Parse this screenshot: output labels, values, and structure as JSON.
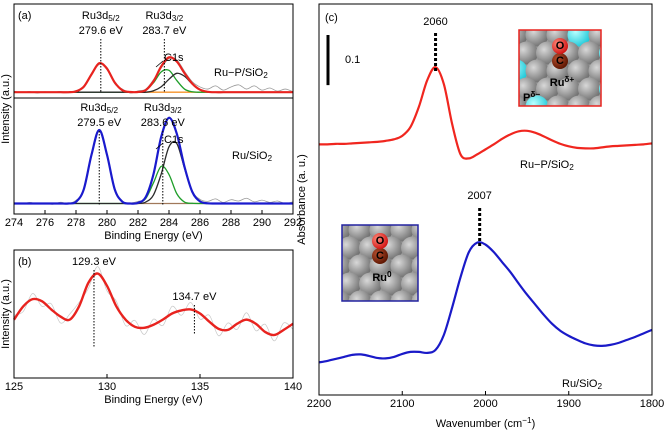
{
  "chart_data": [
    {
      "type": "line",
      "panel_label": "(a)",
      "xlabel": "Binding Energy (eV)",
      "ylabel": "Intensity (a.u.)",
      "xlim": [
        274,
        292
      ],
      "xticks": [
        274,
        276,
        278,
        280,
        282,
        284,
        286,
        288,
        290,
        292
      ],
      "ylim": [
        0,
        10
      ],
      "x": [
        274,
        274.5,
        275,
        275.5,
        276,
        276.5,
        277,
        277.5,
        278,
        278.5,
        279,
        279.5,
        280,
        280.5,
        281,
        281.5,
        282,
        282.5,
        283,
        283.5,
        284,
        284.5,
        285,
        285.5,
        286,
        286.5,
        287,
        287.5,
        288,
        288.5,
        289,
        289.5,
        290,
        290.5,
        291,
        291.5,
        292
      ],
      "series": [
        {
          "color": "#9a9a9a",
          "values": [
            5.85,
            5.78,
            5.83,
            5.76,
            5.82,
            5.79,
            5.84,
            5.77,
            5.88,
            6.02,
            6.7,
            7.12,
            6.98,
            6.2,
            5.95,
            5.76,
            5.86,
            5.95,
            6.4,
            6.95,
            7.4,
            7.35,
            6.8,
            6.3,
            6.05,
            5.95,
            6.1,
            5.9,
            6.05,
            6.15,
            5.95,
            6.1,
            5.9,
            6.0,
            5.85,
            5.95,
            5.82
          ]
        },
        {
          "color": "#f5922a",
          "values": [
            5.8,
            5.8,
            5.8,
            5.8,
            5.8,
            5.8,
            5.8,
            5.8,
            5.84,
            6.06,
            6.65,
            7.18,
            6.92,
            6.26,
            5.89,
            5.81,
            5.8,
            5.8,
            5.8,
            5.8,
            5.8,
            5.8,
            5.8,
            5.8,
            5.8,
            5.8,
            5.8,
            5.8,
            5.8,
            5.8,
            5.8,
            5.8,
            5.8,
            5.8,
            5.8,
            5.8,
            5.8
          ]
        },
        {
          "color": "#1f9e2a",
          "values": [
            5.8,
            5.8,
            5.8,
            5.8,
            5.8,
            5.8,
            5.8,
            5.8,
            5.8,
            5.8,
            5.8,
            5.8,
            5.8,
            5.8,
            5.8,
            5.8,
            5.81,
            5.9,
            6.25,
            6.77,
            6.84,
            6.36,
            5.95,
            5.82,
            5.8,
            5.8,
            5.8,
            5.8,
            5.8,
            5.8,
            5.8,
            5.8,
            5.8,
            5.8,
            5.8,
            5.8,
            5.8
          ]
        },
        {
          "color": "#2b2b2b",
          "values": [
            5.8,
            5.8,
            5.8,
            5.8,
            5.8,
            5.8,
            5.8,
            5.8,
            5.8,
            5.8,
            5.8,
            5.8,
            5.8,
            5.8,
            5.8,
            5.8,
            5.8,
            5.8,
            5.87,
            6.06,
            6.42,
            6.7,
            6.56,
            6.19,
            5.92,
            5.82,
            5.8,
            5.8,
            5.8,
            5.8,
            5.8,
            5.8,
            5.8,
            5.8,
            5.8,
            5.8,
            5.8
          ]
        },
        {
          "color": "#e8231f",
          "values": [
            5.8,
            5.8,
            5.8,
            5.8,
            5.8,
            5.8,
            5.8,
            5.8,
            5.84,
            6.06,
            6.65,
            7.18,
            6.92,
            6.26,
            5.89,
            5.81,
            5.81,
            5.9,
            6.32,
            7.03,
            7.46,
            7.26,
            6.71,
            6.21,
            5.92,
            5.82,
            5.8,
            5.8,
            5.8,
            5.8,
            5.8,
            5.8,
            5.8,
            5.8,
            5.8,
            5.8,
            5.8
          ]
        },
        {
          "color": "#9a9a9a",
          "values": [
            0.52,
            0.47,
            0.55,
            0.49,
            0.53,
            0.46,
            0.56,
            0.5,
            0.65,
            1.1,
            2.9,
            3.95,
            2.75,
            1.25,
            0.55,
            0.52,
            0.6,
            0.78,
            1.95,
            3.6,
            4.62,
            3.78,
            2.3,
            1.1,
            0.7,
            0.6,
            0.72,
            0.55,
            0.68,
            0.62,
            0.75,
            0.58,
            0.66,
            0.55,
            0.62,
            0.5,
            0.58
          ]
        },
        {
          "color": "#a0785a",
          "values": [
            0.5,
            0.5,
            0.5,
            0.5,
            0.5,
            0.5,
            0.5,
            0.5,
            0.58,
            1.17,
            2.82,
            4.0,
            2.82,
            1.17,
            0.58,
            0.5,
            0.5,
            0.5,
            0.5,
            0.5,
            0.5,
            0.5,
            0.5,
            0.5,
            0.5,
            0.5,
            0.5,
            0.5,
            0.5,
            0.5,
            0.5,
            0.5,
            0.5,
            0.5,
            0.5,
            0.5,
            0.5
          ]
        },
        {
          "color": "#1f9e2a",
          "values": [
            0.5,
            0.5,
            0.5,
            0.5,
            0.5,
            0.5,
            0.5,
            0.5,
            0.5,
            0.5,
            0.5,
            0.5,
            0.5,
            0.5,
            0.5,
            0.5,
            0.53,
            0.74,
            1.49,
            2.27,
            1.88,
            0.97,
            0.57,
            0.51,
            0.5,
            0.5,
            0.5,
            0.5,
            0.5,
            0.5,
            0.5,
            0.5,
            0.5,
            0.5,
            0.5,
            0.5,
            0.5
          ]
        },
        {
          "color": "#2b2b2b",
          "values": [
            0.5,
            0.5,
            0.5,
            0.5,
            0.5,
            0.5,
            0.5,
            0.5,
            0.5,
            0.5,
            0.5,
            0.5,
            0.5,
            0.5,
            0.5,
            0.5,
            0.5,
            0.57,
            0.91,
            1.91,
            3.2,
            3.36,
            2.18,
            1.05,
            0.6,
            0.51,
            0.5,
            0.5,
            0.5,
            0.5,
            0.5,
            0.5,
            0.5,
            0.5,
            0.5,
            0.5,
            0.5
          ]
        },
        {
          "color": "#1a1acd",
          "values": [
            0.5,
            0.5,
            0.5,
            0.5,
            0.5,
            0.5,
            0.5,
            0.5,
            0.58,
            1.17,
            2.82,
            4.0,
            2.82,
            1.17,
            0.58,
            0.5,
            0.53,
            0.81,
            1.9,
            3.68,
            4.58,
            3.83,
            2.25,
            1.06,
            0.6,
            0.51,
            0.5,
            0.5,
            0.5,
            0.5,
            0.5,
            0.5,
            0.5,
            0.5,
            0.5,
            0.5,
            0.5
          ]
        }
      ],
      "annotations": [
        {
          "x": 279.6,
          "label": "Ru3d",
          "sub": "5/2",
          "energy": "279.6 eV",
          "color": "#e8231f"
        },
        {
          "x": 283.7,
          "label": "Ru3d",
          "sub": "3/2",
          "energy": "283.7 eV",
          "color": "#e8231f"
        },
        {
          "x": 279.5,
          "label": "Ru3d",
          "sub": "5/2",
          "energy": "279.5 eV",
          "color": "#2323c8"
        },
        {
          "x": 283.6,
          "label": "Ru3d",
          "sub": "3/2",
          "energy": "283.6 eV",
          "color": "#2323c8"
        }
      ],
      "notes": [
        "C1s",
        "C1s"
      ],
      "labels": [
        {
          "text": "Ru−P/SiO",
          "sub": "2",
          "color": "#e8231f"
        },
        {
          "text": "Ru/SiO",
          "sub": "2",
          "color": "#2323c8"
        }
      ]
    },
    {
      "type": "line",
      "panel_label": "(b)",
      "xlabel": "Binding Energy (eV)",
      "ylabel": "Intensity (a.u.)",
      "xlim": [
        125,
        140
      ],
      "xticks": [
        125,
        130,
        135,
        140
      ],
      "ylim": [
        0,
        10
      ],
      "x": [
        125,
        125.5,
        126,
        126.5,
        127,
        127.5,
        128,
        128.5,
        129,
        129.5,
        130,
        130.5,
        131,
        131.5,
        132,
        132.5,
        133,
        133.5,
        134,
        134.5,
        135,
        135.5,
        136,
        136.5,
        137,
        137.5,
        138,
        138.5,
        139,
        139.5,
        140
      ],
      "series": [
        {
          "color": "#c8c8c8",
          "values": [
            4.9,
            5.2,
            6.6,
            5.6,
            5.8,
            4.3,
            5.0,
            5.9,
            7.0,
            8.7,
            6.8,
            6.0,
            4.1,
            4.5,
            3.4,
            4.6,
            4.1,
            5.6,
            4.9,
            5.9,
            4.6,
            4.9,
            3.3,
            4.3,
            3.8,
            5.1,
            3.7,
            4.2,
            2.9,
            4.3,
            3.8
          ]
        },
        {
          "color": "#e8231f",
          "values": [
            4.56,
            5.6,
            6.16,
            6.0,
            5.36,
            4.8,
            4.56,
            5.6,
            7.44,
            8.16,
            7.2,
            5.6,
            4.56,
            4.0,
            3.92,
            4.16,
            4.56,
            5.04,
            5.28,
            5.36,
            5.04,
            4.4,
            3.84,
            3.76,
            4.24,
            4.56,
            4.24,
            3.6,
            3.36,
            3.76,
            4.24
          ]
        }
      ],
      "annotations": [
        {
          "x": 129.3,
          "energy": "129.3 eV",
          "color": "#e8231f"
        },
        {
          "x": 134.7,
          "energy": "134.7 eV",
          "color": "#e8231f"
        }
      ]
    },
    {
      "type": "line",
      "panel_label": "(c)",
      "xlabel": {
        "text": "Wavenumber (cm",
        "sup": "−1",
        "end": ")"
      },
      "ylabel": "Absorbance (a. u.)",
      "xlim": [
        2200,
        1800
      ],
      "xticks": [
        2200,
        2100,
        2000,
        1900,
        1800
      ],
      "ylim": [
        0.04,
        0.82
      ],
      "scale_bar": 0.1,
      "x": [
        2200,
        2190,
        2180,
        2170,
        2160,
        2150,
        2140,
        2130,
        2120,
        2110,
        2100,
        2090,
        2080,
        2070,
        2060,
        2050,
        2040,
        2030,
        2020,
        2010,
        2000,
        1990,
        1980,
        1970,
        1960,
        1950,
        1940,
        1930,
        1920,
        1910,
        1900,
        1890,
        1880,
        1870,
        1860,
        1850,
        1840,
        1830,
        1820,
        1810,
        1800
      ],
      "series": [
        {
          "name": "Ru−P/SiO",
          "name_sub": "2",
          "color": "#f0261f",
          "values": [
            0.54,
            0.54,
            0.541,
            0.541,
            0.542,
            0.543,
            0.544,
            0.545,
            0.547,
            0.55,
            0.557,
            0.575,
            0.615,
            0.668,
            0.694,
            0.66,
            0.58,
            0.52,
            0.512,
            0.52,
            0.53,
            0.54,
            0.551,
            0.56,
            0.566,
            0.567,
            0.563,
            0.556,
            0.548,
            0.541,
            0.536,
            0.533,
            0.532,
            0.532,
            0.534,
            0.536,
            0.537,
            0.538,
            0.539,
            0.54,
            0.542
          ]
        },
        {
          "name": "Ru/SiO",
          "name_sub": "2",
          "color": "#1a1ac8",
          "values": [
            0.105,
            0.108,
            0.112,
            0.116,
            0.12,
            0.121,
            0.118,
            0.114,
            0.113,
            0.116,
            0.122,
            0.126,
            0.126,
            0.124,
            0.13,
            0.16,
            0.215,
            0.275,
            0.325,
            0.344,
            0.34,
            0.325,
            0.305,
            0.285,
            0.262,
            0.24,
            0.22,
            0.2,
            0.182,
            0.168,
            0.158,
            0.15,
            0.143,
            0.139,
            0.138,
            0.14,
            0.144,
            0.15,
            0.156,
            0.163,
            0.17
          ]
        }
      ],
      "annotations": [
        {
          "x": 2060
        },
        {
          "x": 2007
        }
      ],
      "insets": [
        {
          "o": "O",
          "c": "C",
          "ru": "Ru",
          "ru_sup": "δ+",
          "p": "P",
          "p_sup": "δ−",
          "color": "#e8231f"
        },
        {
          "o": "O",
          "c": "C",
          "ru": "Ru",
          "ru_sup": "0",
          "color": "#2323a0"
        }
      ]
    }
  ]
}
